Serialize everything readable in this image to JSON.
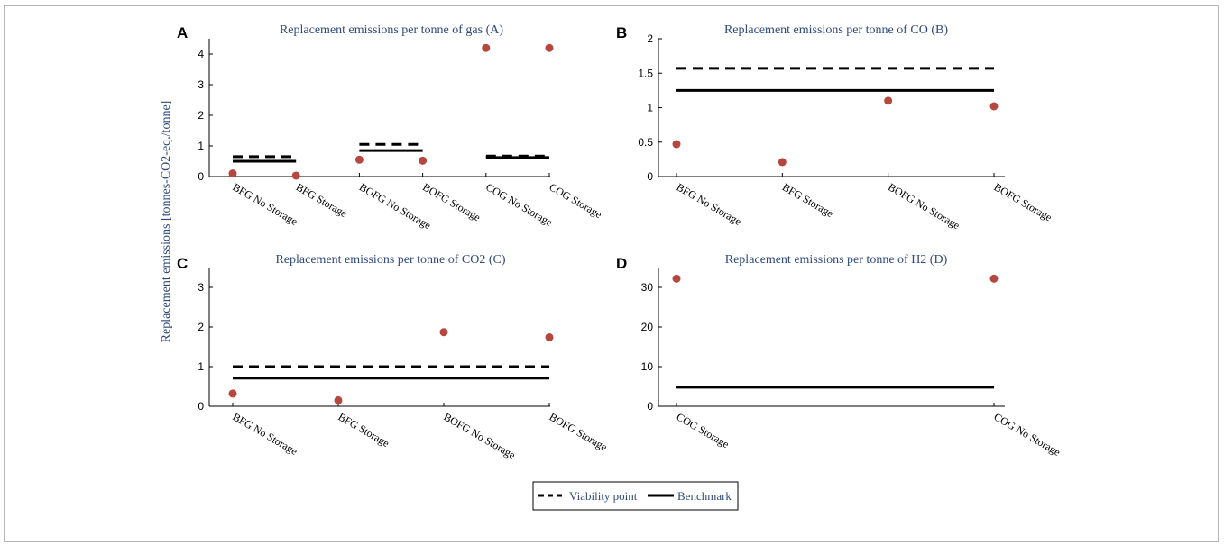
{
  "figure": {
    "ylabel": "Replacement emissions [tonnes-CO2-eq./tonne]",
    "legend": {
      "position": "bottom-center",
      "viability": "Viability point",
      "benchmark": "Benchmark"
    }
  },
  "colors": {
    "point": "#b5473f",
    "title": "#2e4a7d",
    "line": "#000000"
  },
  "chart_data": [
    {
      "type": "scatter",
      "panel": "A",
      "title": "Replacement emissions per tonne of gas (A)",
      "categories": [
        "BFG No Storage",
        "BFG Storage",
        "BOFG No Storage",
        "BOFG Storage",
        "COG No Storage",
        "COG Storage"
      ],
      "values": [
        0.1,
        0.03,
        0.55,
        0.52,
        4.2,
        4.2
      ],
      "ylim": [
        0,
        4.5
      ],
      "yticks": [
        0,
        1,
        2,
        3,
        4
      ],
      "ytick_labels": [
        "0",
        "1",
        "2",
        "3",
        "4"
      ],
      "viability_point": [
        {
          "from": 0,
          "to": 1,
          "value": 0.65
        },
        {
          "from": 2,
          "to": 3,
          "value": 1.05
        },
        {
          "from": 4,
          "to": 5,
          "value": 0.67
        }
      ],
      "benchmark": [
        {
          "from": 0,
          "to": 1,
          "value": 0.5
        },
        {
          "from": 2,
          "to": 3,
          "value": 0.85
        },
        {
          "from": 4,
          "to": 5,
          "value": 0.62
        }
      ]
    },
    {
      "type": "scatter",
      "panel": "B",
      "title": "Replacement emissions per tonne of CO (B)",
      "categories": [
        "BFG No Storage",
        "BFG Storage",
        "BOFG No Storage",
        "BOFG Storage"
      ],
      "values": [
        0.47,
        0.21,
        1.1,
        1.02
      ],
      "ylim": [
        0,
        2
      ],
      "yticks": [
        0,
        0.5,
        1,
        1.5,
        2
      ],
      "ytick_labels": [
        "0",
        "0.5",
        "1",
        "1.5",
        "2"
      ],
      "viability_point": [
        {
          "from": 0,
          "to": 3,
          "value": 1.57
        }
      ],
      "benchmark": [
        {
          "from": 0,
          "to": 3,
          "value": 1.25
        }
      ]
    },
    {
      "type": "scatter",
      "panel": "C",
      "title": "Replacement emissions per tonne of CO2 (C)",
      "categories": [
        "BFG No Storage",
        "BFG Storage",
        "BOFG No Storage",
        "BOFG Storage"
      ],
      "values": [
        0.32,
        0.15,
        1.87,
        1.74
      ],
      "ylim": [
        0,
        3.5
      ],
      "yticks": [
        0,
        1,
        2,
        3
      ],
      "ytick_labels": [
        "0",
        "1",
        "2",
        "3"
      ],
      "viability_point": [
        {
          "from": 0,
          "to": 3,
          "value": 1.0
        }
      ],
      "benchmark": [
        {
          "from": 0,
          "to": 3,
          "value": 0.71
        }
      ]
    },
    {
      "type": "scatter",
      "panel": "D",
      "title": "Replacement emissions per tonne of H2 (D)",
      "categories": [
        "COG Storage",
        "COG No Storage"
      ],
      "values": [
        32.2,
        32.2
      ],
      "ylim": [
        0,
        35
      ],
      "yticks": [
        0,
        10,
        20,
        30
      ],
      "ytick_labels": [
        "0",
        "10",
        "20",
        "30"
      ],
      "viability_point": [],
      "benchmark": [
        {
          "from": 0,
          "to": 1,
          "value": 4.8
        }
      ]
    }
  ]
}
